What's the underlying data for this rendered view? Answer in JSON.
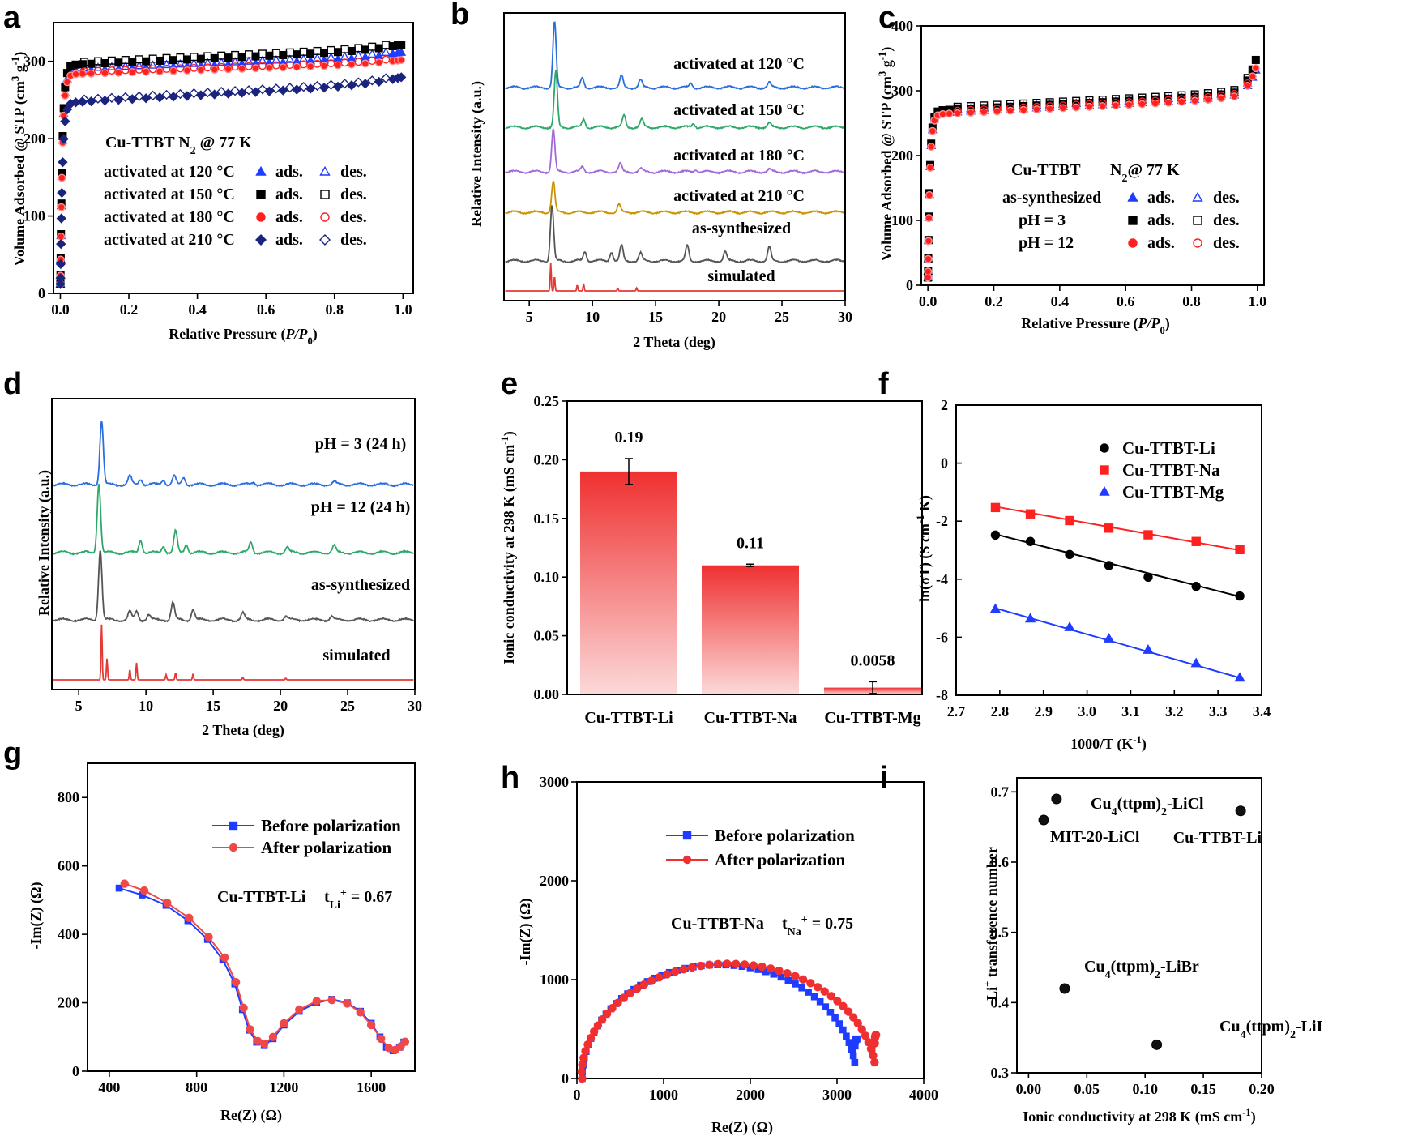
{
  "colors": {
    "blue": "#1f3cff",
    "black": "#000000",
    "red": "#ff2020",
    "navy": "#1a237e",
    "curve_blue": "#2a6fdb",
    "curve_green": "#2ea86a",
    "curve_purple": "#a26ad8",
    "curve_gold": "#c99400",
    "curve_gray": "#555555",
    "curve_red": "#e53935",
    "bar_red": "#ef3b3b"
  },
  "chart_data": [
    {
      "panel": "a",
      "type": "scatter",
      "xlabel": "Relative Pressure (P/P0)",
      "ylabel": "Volume Adsorbed @ STP (cm3 g-1)",
      "xlim": [
        -0.02,
        1.03
      ],
      "ylim": [
        0,
        350
      ],
      "xticks": [
        "0.0",
        "0.2",
        "0.4",
        "0.6",
        "0.8",
        "1.0"
      ],
      "yticks": [
        "0",
        "100",
        "200",
        "300"
      ],
      "annotation": "Cu-TTBT N2 @ 77 K",
      "legend_ads": "ads.",
      "legend_des": "des.",
      "series": [
        {
          "name": "activated at 120 °C",
          "marker": "triangle",
          "color": "blue",
          "plateau": 287,
          "end": 312,
          "slope": 18
        },
        {
          "name": "activated at 150 °C",
          "marker": "square",
          "color": "black",
          "plateau": 295,
          "end": 322,
          "slope": 20
        },
        {
          "name": "activated at 180 °C",
          "marker": "circle",
          "color": "red",
          "plateau": 283,
          "end": 302,
          "slope": 14
        },
        {
          "name": "activated at 210 °C",
          "marker": "diamond",
          "color": "navy",
          "plateau": 246,
          "end": 280,
          "slope": 25
        }
      ]
    },
    {
      "panel": "b",
      "type": "line",
      "xlabel": "2 Theta (deg)",
      "ylabel": "Relative Intensity (a.u.)",
      "xlim": [
        3,
        30
      ],
      "xticks": [
        "5",
        "10",
        "15",
        "20",
        "25",
        "30"
      ],
      "series": [
        {
          "name": "activated at 120 °C",
          "color": "curve_blue",
          "offset": 5,
          "peaks": [
            [
              7.0,
              0.85
            ],
            [
              9.2,
              0.12
            ],
            [
              12.3,
              0.15
            ],
            [
              13.8,
              0.1
            ],
            [
              17.8,
              0.05
            ],
            [
              24.0,
              0.06
            ]
          ]
        },
        {
          "name": "activated at 150 °C",
          "color": "curve_green",
          "offset": 4,
          "peaks": [
            [
              7.1,
              0.72
            ],
            [
              9.3,
              0.1
            ],
            [
              12.5,
              0.15
            ],
            [
              13.9,
              0.1
            ],
            [
              18.0,
              0.05
            ],
            [
              24.0,
              0.05
            ]
          ]
        },
        {
          "name": "activated at 180 °C",
          "color": "curve_purple",
          "offset": 3,
          "peaks": [
            [
              6.9,
              0.55
            ],
            [
              9.2,
              0.06
            ],
            [
              12.2,
              0.1
            ],
            [
              13.8,
              0.04
            ],
            [
              18.2,
              0.03
            ],
            [
              24.0,
              0.03
            ]
          ]
        },
        {
          "name": "activated at 210 °C",
          "color": "curve_gold",
          "offset": 2,
          "peaks": [
            [
              6.9,
              0.4
            ],
            [
              12.1,
              0.1
            ]
          ]
        },
        {
          "name": "as-synthesized",
          "color": "curve_gray",
          "offset": 1,
          "peaks": [
            [
              6.8,
              0.72
            ],
            [
              9.4,
              0.12
            ],
            [
              11.5,
              0.12
            ],
            [
              12.3,
              0.2
            ],
            [
              13.8,
              0.1
            ],
            [
              17.5,
              0.2
            ],
            [
              20.5,
              0.12
            ],
            [
              24.0,
              0.18
            ]
          ]
        },
        {
          "name": "simulated",
          "color": "curve_red",
          "offset": 0,
          "peaks": [
            [
              6.7,
              0.38
            ],
            [
              7.0,
              0.2
            ],
            [
              8.8,
              0.08
            ],
            [
              9.3,
              0.1
            ],
            [
              12.0,
              0.04
            ],
            [
              13.5,
              0.04
            ]
          ],
          "sharp": true
        }
      ]
    },
    {
      "panel": "c",
      "type": "scatter",
      "xlabel": "Relative Pressure (P/P0)",
      "ylabel": "Volume Adsorbed @ STP (cm3 g-1)",
      "xlim": [
        -0.02,
        1.02
      ],
      "ylim": [
        0,
        400
      ],
      "xticks": [
        "0.0",
        "0.2",
        "0.4",
        "0.6",
        "0.8",
        "1.0"
      ],
      "yticks": [
        "0",
        "100",
        "200",
        "300",
        "400"
      ],
      "annotation_material": "Cu-TTBT",
      "annotation_conditions": "N2@ 77 K",
      "legend_ads": "ads.",
      "legend_des": "des.",
      "series": [
        {
          "name": "as-synthesized",
          "marker": "triangle",
          "color": "blue",
          "plateau": 280,
          "end": 338
        },
        {
          "name": "pH = 3",
          "marker": "square",
          "color": "black",
          "plateau": 284,
          "end": 356
        },
        {
          "name": "pH = 12",
          "marker": "circle",
          "color": "red",
          "plateau": 278,
          "end": 342
        }
      ]
    },
    {
      "panel": "d",
      "type": "line",
      "xlabel": "2 Theta (deg)",
      "ylabel": "Relative Intensity (a.u.)",
      "xlim": [
        3,
        30
      ],
      "xticks": [
        "5",
        "10",
        "15",
        "20",
        "25",
        "30"
      ],
      "series": [
        {
          "name": "pH = 3 (24 h)",
          "color": "curve_blue",
          "offset": 3,
          "peaks": [
            [
              6.7,
              0.75
            ],
            [
              8.8,
              0.1
            ],
            [
              9.6,
              0.07
            ],
            [
              11.3,
              0.06
            ],
            [
              12.1,
              0.1
            ],
            [
              12.8,
              0.08
            ],
            [
              18.0,
              0.03
            ],
            [
              24.0,
              0.03
            ]
          ]
        },
        {
          "name": "pH = 12 (24 h)",
          "color": "curve_green",
          "offset": 2,
          "peaks": [
            [
              6.5,
              0.82
            ],
            [
              9.6,
              0.15
            ],
            [
              11.3,
              0.08
            ],
            [
              12.2,
              0.25
            ],
            [
              13.0,
              0.1
            ],
            [
              17.8,
              0.12
            ],
            [
              20.5,
              0.06
            ],
            [
              24.0,
              0.08
            ]
          ]
        },
        {
          "name": "as-synthesized",
          "color": "curve_gray",
          "offset": 1,
          "peaks": [
            [
              6.6,
              0.82
            ],
            [
              8.8,
              0.1
            ],
            [
              9.3,
              0.1
            ],
            [
              10.2,
              0.06
            ],
            [
              12.0,
              0.2
            ],
            [
              13.5,
              0.12
            ],
            [
              17.2,
              0.08
            ],
            [
              20.4,
              0.04
            ],
            [
              23.8,
              0.04
            ]
          ]
        },
        {
          "name": "simulated",
          "color": "curve_red",
          "offset": 0,
          "peaks": [
            [
              6.7,
              0.65
            ],
            [
              7.1,
              0.25
            ],
            [
              8.8,
              0.12
            ],
            [
              9.3,
              0.2
            ],
            [
              11.5,
              0.06
            ],
            [
              12.2,
              0.08
            ],
            [
              13.5,
              0.07
            ],
            [
              17.2,
              0.03
            ],
            [
              20.4,
              0.02
            ]
          ],
          "sharp": true
        }
      ]
    },
    {
      "panel": "e",
      "type": "bar",
      "xlabel": "",
      "ylabel": "Ionic conductivity at 298 K (mS cm-1)",
      "ylim": [
        0,
        0.25
      ],
      "yticks": [
        "0.00",
        "0.05",
        "0.10",
        "0.15",
        "0.20",
        "0.25"
      ],
      "categories": [
        "Cu-TTBT-Li",
        "Cu-TTBT-Na",
        "Cu-TTBT-Mg"
      ],
      "values": [
        0.19,
        0.11,
        0.0058
      ],
      "errors": [
        0.011,
        0.001,
        0.005
      ],
      "value_labels": [
        "0.19",
        "0.11",
        "0.0058"
      ]
    },
    {
      "panel": "f",
      "type": "scatter",
      "xlabel": "1000/T (K-1)",
      "ylabel": "ln(σT) (S cm-1 K)",
      "xlim": [
        2.7,
        3.4
      ],
      "ylim": [
        -8,
        2
      ],
      "xticks": [
        "2.7",
        "2.8",
        "2.9",
        "3.0",
        "3.1",
        "3.2",
        "3.3",
        "3.4"
      ],
      "yticks": [
        "-8",
        "-6",
        "-4",
        "-2",
        "0",
        "2"
      ],
      "x": [
        2.79,
        2.87,
        2.96,
        3.05,
        3.14,
        3.25,
        3.35
      ],
      "series": [
        {
          "name": "Cu-TTBT-Li",
          "marker": "circle",
          "color": "black",
          "values": [
            -2.48,
            -2.7,
            -3.15,
            -3.53,
            -3.93,
            -4.25,
            -4.58
          ],
          "fit": [
            -2.45,
            -4.6
          ]
        },
        {
          "name": "Cu-TTBT-Na",
          "marker": "square",
          "color": "red",
          "values": [
            -1.53,
            -1.75,
            -1.98,
            -2.24,
            -2.47,
            -2.7,
            -2.98
          ],
          "fit": [
            -1.5,
            -3.0
          ]
        },
        {
          "name": "Cu-TTBT-Mg",
          "marker": "triangle",
          "color": "blue",
          "values": [
            -5.03,
            -5.36,
            -5.66,
            -6.05,
            -6.44,
            -6.9,
            -7.4
          ],
          "fit": [
            -5.0,
            -7.4
          ]
        }
      ]
    },
    {
      "panel": "g",
      "type": "line",
      "xlabel": "Re(Z) (Ω)",
      "ylabel": "-Im(Z) (Ω)",
      "xlim": [
        300,
        1800
      ],
      "ylim": [
        0,
        900
      ],
      "xticks": [
        "400",
        "800",
        "1200",
        "1600"
      ],
      "yticks": [
        "0",
        "200",
        "400",
        "600",
        "800"
      ],
      "annotation_material": "Cu-TTBT-Li",
      "annotation_t": "t",
      "annotation_sub": "Li",
      "annotation_value": "= 0.67",
      "series": [
        {
          "name": "Before polarization",
          "marker": "square",
          "color": "blue",
          "points": [
            [
              445,
              535
            ],
            [
              550,
              515
            ],
            [
              660,
              485
            ],
            [
              760,
              440
            ],
            [
              850,
              385
            ],
            [
              920,
              325
            ],
            [
              975,
              255
            ],
            [
              1010,
              180
            ],
            [
              1040,
              120
            ],
            [
              1075,
              85
            ],
            [
              1110,
              75
            ],
            [
              1150,
              95
            ],
            [
              1200,
              135
            ],
            [
              1270,
              175
            ],
            [
              1350,
              200
            ],
            [
              1420,
              210
            ],
            [
              1490,
              200
            ],
            [
              1550,
              175
            ],
            [
              1600,
              140
            ],
            [
              1640,
              100
            ],
            [
              1670,
              70
            ],
            [
              1700,
              60
            ],
            [
              1730,
              70
            ],
            [
              1750,
              85
            ]
          ]
        },
        {
          "name": "After polarization",
          "marker": "circle",
          "color": "red",
          "points": [
            [
              470,
              548
            ],
            [
              560,
              528
            ],
            [
              665,
              492
            ],
            [
              765,
              448
            ],
            [
              855,
              392
            ],
            [
              928,
              332
            ],
            [
              980,
              260
            ],
            [
              1015,
              185
            ],
            [
              1045,
              122
            ],
            [
              1080,
              88
            ],
            [
              1110,
              80
            ],
            [
              1150,
              100
            ],
            [
              1200,
              140
            ],
            [
              1270,
              180
            ],
            [
              1350,
              205
            ],
            [
              1420,
              208
            ],
            [
              1490,
              198
            ],
            [
              1550,
              172
            ],
            [
              1600,
              135
            ],
            [
              1645,
              95
            ],
            [
              1680,
              68
            ],
            [
              1710,
              62
            ],
            [
              1735,
              72
            ],
            [
              1755,
              86
            ]
          ]
        }
      ]
    },
    {
      "panel": "h",
      "type": "line",
      "xlabel": "Re(Z) (Ω)",
      "ylabel": "-Im(Z) (Ω)",
      "xlim": [
        0,
        4000
      ],
      "ylim": [
        0,
        3000
      ],
      "xticks": [
        "0",
        "1000",
        "2000",
        "3000",
        "4000"
      ],
      "yticks": [
        "0",
        "1000",
        "2000",
        "3000"
      ],
      "annotation_material": "Cu-TTBT-Na",
      "annotation_t": "t",
      "annotation_sub": "Na",
      "annotation_value": "= 0.75",
      "series": [
        {
          "name": "Before polarization",
          "marker": "square",
          "color": "blue",
          "center": 1640,
          "radius": 1580,
          "ry": 1150,
          "end": 3230,
          "endy": 400
        },
        {
          "name": "After polarization",
          "marker": "circle",
          "color": "red",
          "center": 1750,
          "radius": 1700,
          "ry": 1160,
          "end": 3450,
          "endy": 440
        }
      ]
    },
    {
      "panel": "i",
      "type": "scatter",
      "xlabel": "Ionic conductivity at 298 K (mS cm-1)",
      "ylabel": "Li+ transference number",
      "xlim": [
        -0.01,
        0.2
      ],
      "ylim": [
        0.3,
        0.72
      ],
      "xticks": [
        "0.00",
        "0.05",
        "0.10",
        "0.15",
        "0.20"
      ],
      "yticks": [
        "0.3",
        "0.4",
        "0.5",
        "0.6",
        "0.7"
      ],
      "points": [
        {
          "label": "MIT-20-LiCl",
          "x": 0.013,
          "y": 0.66
        },
        {
          "label": "Cu4(ttpm)2-LiCl",
          "x": 0.024,
          "y": 0.69
        },
        {
          "label": "Cu-TTBT-Li",
          "x": 0.182,
          "y": 0.673
        },
        {
          "label": "Cu4(ttpm)2-LiBr",
          "x": 0.031,
          "y": 0.42
        },
        {
          "label": "Cu4(ttpm)2-LiI",
          "x": 0.11,
          "y": 0.34
        }
      ]
    }
  ],
  "panel_labels": [
    "a",
    "b",
    "c",
    "d",
    "e",
    "f",
    "g",
    "h",
    "i"
  ]
}
